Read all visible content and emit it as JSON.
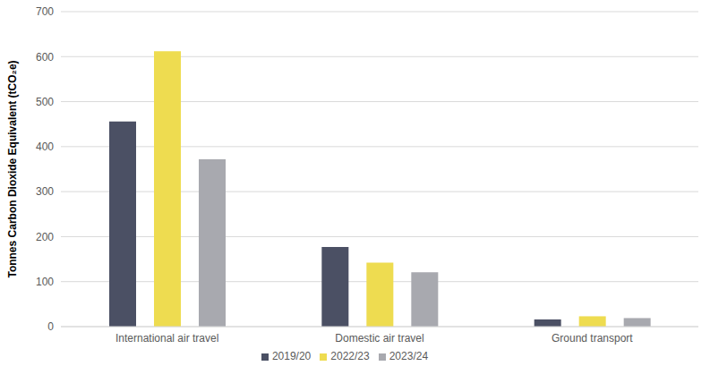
{
  "chart_data": {
    "type": "bar",
    "y_label": "Tonnes Carbon Dioxide Equivalent (tCO₂e)",
    "categories": [
      "International air travel",
      "Domestic air travel",
      "Ground transport"
    ],
    "series": [
      {
        "name": "2019/20",
        "color": "#4b5064",
        "values": [
          456,
          177,
          16
        ]
      },
      {
        "name": "2022/23",
        "color": "#eedc50",
        "values": [
          612,
          142,
          23
        ]
      },
      {
        "name": "2023/24",
        "color": "#a8a9af",
        "values": [
          372,
          121,
          19
        ]
      }
    ],
    "ylim": [
      0,
      700
    ],
    "yticks": [
      0,
      100,
      200,
      300,
      400,
      500,
      600,
      700
    ],
    "grid": true,
    "legend": "bottom"
  }
}
